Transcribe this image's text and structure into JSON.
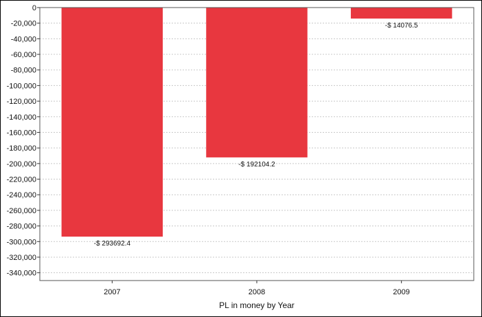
{
  "chart_data": {
    "type": "bar",
    "categories": [
      "2007",
      "2008",
      "2009"
    ],
    "values": [
      -293692.4,
      -192104.2,
      -14076.5
    ],
    "data_labels": [
      "-$ 293692.4",
      "-$ 192104.2",
      "-$ 14076.5"
    ],
    "xlabel": "PL in money by Year",
    "ylim": [
      -350000,
      0
    ],
    "yticks": [
      0,
      -20000,
      -40000,
      -60000,
      -80000,
      -100000,
      -120000,
      -140000,
      -160000,
      -180000,
      -200000,
      -220000,
      -240000,
      -260000,
      -280000,
      -300000,
      -320000,
      -340000
    ],
    "ytick_labels": [
      "0",
      "-20,000",
      "-40,000",
      "-60,000",
      "-80,000",
      "-100,000",
      "-120,000",
      "-140,000",
      "-160,000",
      "-180,000",
      "-200,000",
      "-220,000",
      "-240,000",
      "-260,000",
      "-280,000",
      "-300,000",
      "-320,000",
      "-340,000"
    ],
    "grid": true,
    "bar_color": "#e8373f",
    "legend": "none"
  }
}
